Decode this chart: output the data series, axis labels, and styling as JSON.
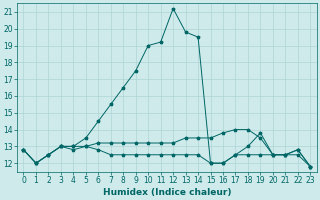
{
  "xlabel": "Humidex (Indice chaleur)",
  "bg_color": "#ceeaea",
  "grid_color": "#aed4d4",
  "line_color": "#006666",
  "xlim": [
    -0.5,
    23.5
  ],
  "ylim": [
    11.5,
    21.5
  ],
  "xticks": [
    0,
    1,
    2,
    3,
    4,
    5,
    6,
    7,
    8,
    9,
    10,
    11,
    12,
    13,
    14,
    15,
    16,
    17,
    18,
    19,
    20,
    21,
    22,
    23
  ],
  "yticks": [
    12,
    13,
    14,
    15,
    16,
    17,
    18,
    19,
    20,
    21
  ],
  "series1_x": [
    0,
    1,
    2,
    3,
    4,
    5,
    6,
    7,
    8,
    9,
    10,
    11,
    12,
    13,
    14,
    15,
    16,
    17,
    18,
    19,
    20,
    21,
    22,
    23
  ],
  "series1_y": [
    12.8,
    12.0,
    12.5,
    13.0,
    13.0,
    13.5,
    14.5,
    15.5,
    16.5,
    17.5,
    19.0,
    19.2,
    21.2,
    19.8,
    19.5,
    12.0,
    12.0,
    12.5,
    13.0,
    13.8,
    12.5,
    12.5,
    12.5,
    11.8
  ],
  "series2_x": [
    0,
    1,
    2,
    3,
    4,
    5,
    6,
    7,
    8,
    9,
    10,
    11,
    12,
    13,
    14,
    15,
    16,
    17,
    18,
    19,
    20,
    21,
    22,
    23
  ],
  "series2_y": [
    12.8,
    12.0,
    12.5,
    13.0,
    13.0,
    13.0,
    13.2,
    13.2,
    13.2,
    13.2,
    13.2,
    13.2,
    13.2,
    13.5,
    13.5,
    13.5,
    13.8,
    14.0,
    14.0,
    13.5,
    12.5,
    12.5,
    12.8,
    11.8
  ],
  "series3_x": [
    0,
    1,
    2,
    3,
    4,
    5,
    6,
    7,
    8,
    9,
    10,
    11,
    12,
    13,
    14,
    15,
    16,
    17,
    18,
    19,
    20,
    21,
    22,
    23
  ],
  "series3_y": [
    12.8,
    12.0,
    12.5,
    13.0,
    12.8,
    13.0,
    12.8,
    12.5,
    12.5,
    12.5,
    12.5,
    12.5,
    12.5,
    12.5,
    12.5,
    12.0,
    12.0,
    12.5,
    12.5,
    12.5,
    12.5,
    12.5,
    12.8,
    11.8
  ]
}
